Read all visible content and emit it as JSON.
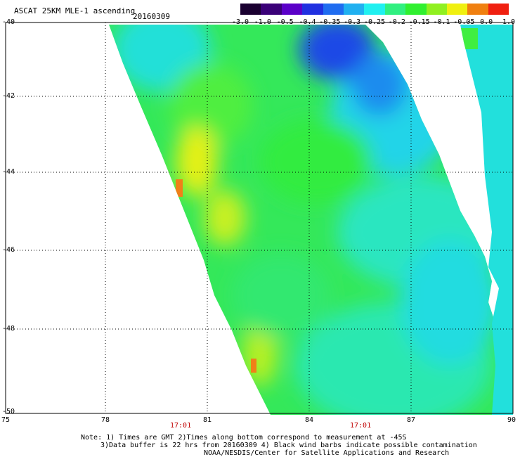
{
  "header": {
    "title": "ASCAT 25KM MLE-1 ascending",
    "date": "20160309"
  },
  "colorbar": {
    "labels": [
      "-3.0",
      "-1.0",
      "-0.5",
      "-0.4",
      "-0.35",
      "-0.3",
      "-0.25",
      "-0.2",
      "-0.15",
      "-0.1",
      "-0.05",
      "0.0",
      "1.0"
    ],
    "colors": [
      "#1a0030",
      "#3a0078",
      "#5a00c8",
      "#2030e0",
      "#1f6cf0",
      "#20b0f0",
      "#20f0f0",
      "#30f080",
      "#30f030",
      "#90f020",
      "#f0f010",
      "#f08010",
      "#f02010"
    ]
  },
  "axes": {
    "x_labels": [
      "75",
      "78",
      "81",
      "84",
      "87",
      "90"
    ],
    "y_labels": [
      "-40",
      "-42",
      "-44",
      "-46",
      "-48",
      "-50"
    ]
  },
  "times": [
    "17:01",
    "17:01"
  ],
  "notes": {
    "line1": "Note: 1) Times are GMT 2)Times along bottom correspond to measurement at -45S",
    "line2": "3)Data buffer is 22 hrs from 20160309 4) Black wind barbs indicate possible contamination",
    "line3": "NOAA/NESDIS/Center for Satellite Applications and Research"
  }
}
